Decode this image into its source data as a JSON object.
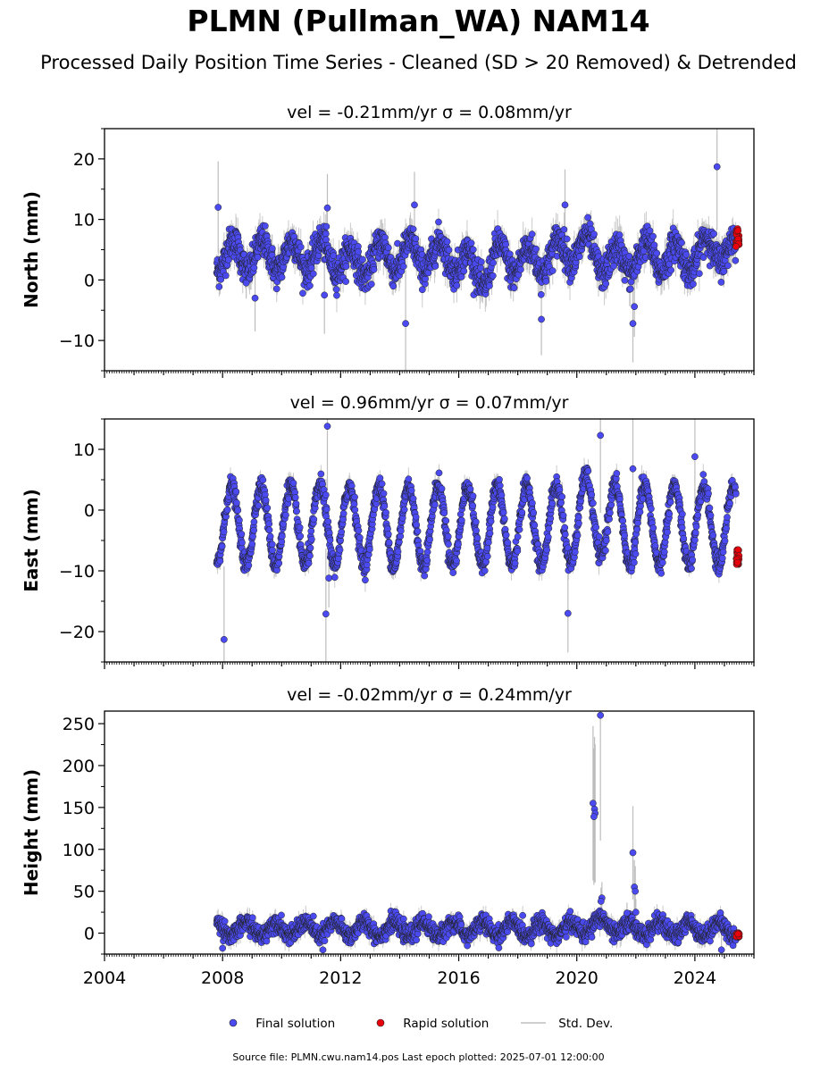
{
  "title": "PLMN (Pullman_WA) NAM14",
  "subtitle": "Processed Daily Position Time Series - Cleaned (SD > 20 Removed) & Detrended",
  "footer": "Source file: PLMN.cwu.nam14.pos  Last epoch plotted: 2025-07-01 12:00:00",
  "legend": [
    {
      "label": "Final solution",
      "color": "#4a4af0"
    },
    {
      "label": "Rapid solution",
      "color": "#e8000b"
    },
    {
      "label": "Std. Dev.",
      "color": "#bdbdbd"
    }
  ],
  "colors": {
    "final": "#4a4af0",
    "rapid": "#e8000b",
    "stddev": "#bdbdbd",
    "dark": "#222222"
  },
  "chart_data": [
    {
      "type": "scatter",
      "title": "vel = -0.21mm/yr   σ = 0.08mm/yr",
      "ylabel": "North (mm)",
      "xlim": [
        2004,
        2026
      ],
      "ylim": [
        -15,
        25
      ],
      "yticks": [
        -10,
        0,
        10,
        20
      ],
      "ytick_labels": [
        "−10",
        "0",
        "10",
        "20"
      ],
      "model": {
        "t0": 2007.8,
        "t1": 2025.4,
        "a0": 4,
        "amp": 2.5,
        "phase": 0.1,
        "noise": 1.3
      },
      "wiggles": [
        [
          2012.5,
          -1.5
        ],
        [
          2016.7,
          -3
        ],
        [
          2018.3,
          -1
        ],
        [
          2020.0,
          1.5
        ],
        [
          2021.3,
          -1.2
        ],
        [
          2023.5,
          -0.5
        ],
        [
          2024.8,
          1.5
        ]
      ],
      "outliers": [
        [
          2007.85,
          12
        ],
        [
          2011.55,
          11.9
        ],
        [
          2011.45,
          -2.5
        ],
        [
          2014.2,
          -7.2
        ],
        [
          2014.5,
          12.4
        ],
        [
          2018.8,
          -6.5
        ],
        [
          2019.6,
          12.4
        ],
        [
          2021.9,
          -7.2
        ],
        [
          2021.95,
          -4.4
        ],
        [
          2024.75,
          18.7
        ],
        [
          2009.1,
          -3.0
        ],
        [
          2008.8,
          -0.5
        ]
      ],
      "rapid": {
        "t0": 2025.05,
        "t1": 2025.5,
        "center": 7,
        "spread": 3
      },
      "xtick_labels_shown": false
    },
    {
      "type": "scatter",
      "title": "vel = 0.96mm/yr   σ = 0.07mm/yr",
      "ylabel": "East (mm)",
      "xlim": [
        2004,
        2026
      ],
      "ylim": [
        -25,
        15
      ],
      "yticks": [
        -20,
        -10,
        0,
        10
      ],
      "ytick_labels": [
        "−20",
        "−10",
        "0",
        "10"
      ],
      "model": {
        "t0": 2007.8,
        "t1": 2025.4,
        "a0": -2.5,
        "amp": 6.5,
        "phase": 0.05,
        "noise": 0.8
      },
      "wiggles": [
        [
          2020.5,
          2
        ]
      ],
      "outliers": [
        [
          2008.05,
          -21.3
        ],
        [
          2011.55,
          13.8
        ],
        [
          2011.5,
          -17.1
        ],
        [
          2011.6,
          -11.2
        ],
        [
          2019.7,
          -17.0
        ],
        [
          2019.5,
          2.2
        ],
        [
          2020.8,
          12.3
        ],
        [
          2021.9,
          6.8
        ],
        [
          2024.0,
          8.8
        ],
        [
          2011.5,
          2.5
        ]
      ],
      "rapid": {
        "t0": 2025.1,
        "t1": 2025.5,
        "center": -7.5,
        "spread": 3
      },
      "xtick_labels_shown": false
    },
    {
      "type": "scatter",
      "title": "vel = -0.02mm/yr   σ = 0.24mm/yr",
      "ylabel": "Height (mm)",
      "xlim": [
        2004,
        2026
      ],
      "ylim": [
        -25,
        265
      ],
      "yticks": [
        0,
        50,
        100,
        150,
        200,
        250
      ],
      "ytick_labels": [
        "0",
        "50",
        "100",
        "150",
        "200",
        "250"
      ],
      "model": {
        "t0": 2007.8,
        "t1": 2025.4,
        "a0": 5,
        "amp": 8,
        "phase": 0.55,
        "noise": 5
      },
      "wiggles": [
        [
          2020.8,
          6
        ]
      ],
      "outliers": [
        [
          2020.55,
          155
        ],
        [
          2020.6,
          148
        ],
        [
          2020.62,
          143
        ],
        [
          2020.58,
          139
        ],
        [
          2020.8,
          260
        ],
        [
          2020.85,
          42
        ],
        [
          2020.82,
          38
        ],
        [
          2021.9,
          96
        ],
        [
          2021.95,
          55
        ],
        [
          2021.98,
          50
        ],
        [
          2022.0,
          25
        ],
        [
          2021.7,
          24
        ],
        [
          2008.0,
          -18
        ],
        [
          2011.4,
          -20
        ],
        [
          2024.9,
          -20
        ]
      ],
      "rapid": {
        "t0": 2025.1,
        "t1": 2025.5,
        "center": -2,
        "spread": 6
      },
      "xticks": [
        2004,
        2008,
        2012,
        2016,
        2020,
        2024
      ],
      "xtick_labels": [
        "2004",
        "2008",
        "2012",
        "2016",
        "2020",
        "2024"
      ],
      "xtick_labels_shown": true
    }
  ]
}
